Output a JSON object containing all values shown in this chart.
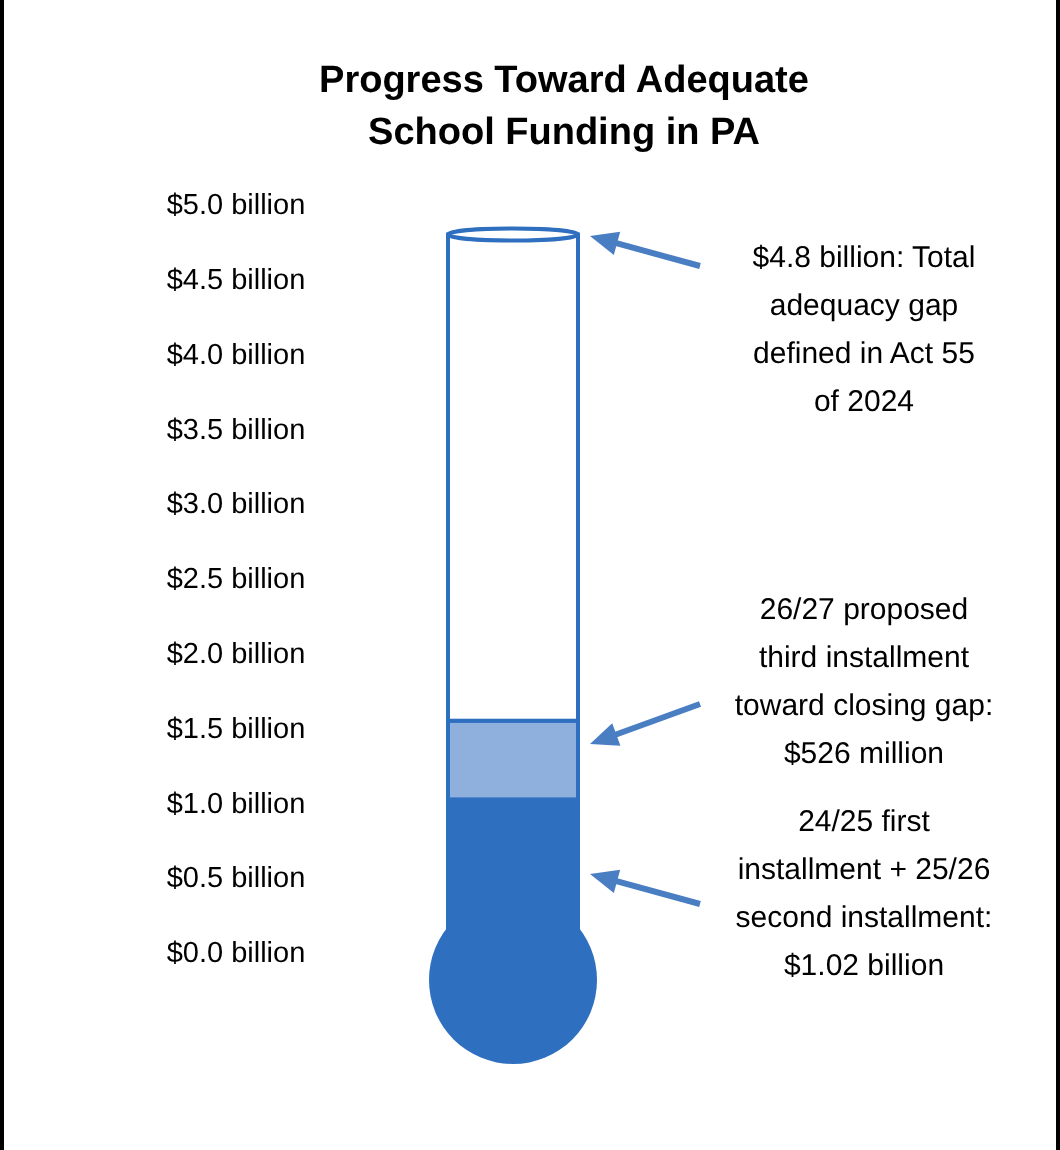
{
  "chart_data": {
    "type": "bar",
    "title": "Progress Toward Adequate School Funding in PA",
    "categories": [
      null
    ],
    "stacked": true,
    "series": [
      {
        "color": "#2e6fc0",
        "values": [
          1.02
        ]
      },
      {
        "color": "#8fb0dc",
        "values": [
          0.526
        ]
      },
      {
        "color": "#ffffff",
        "values": [
          3.25
        ]
      }
    ],
    "ylim": [
      0,
      5
    ],
    "yticks": [
      {
        "value": 0,
        "label": "$0.0 billion"
      },
      {
        "value": 0.5,
        "label": "$0.5 billion"
      },
      {
        "value": 1,
        "label": "$1.0 billion"
      },
      {
        "value": 1.5,
        "label": "$1.5 billion"
      },
      {
        "value": 2,
        "label": "$2.0 billion"
      },
      {
        "value": 2.5,
        "label": "$2.5 billion"
      },
      {
        "value": 3,
        "label": "$3.0 billion"
      },
      {
        "value": 3.5,
        "label": "$3.5 billion"
      },
      {
        "value": 4,
        "label": "$4.0 billion"
      },
      {
        "value": 4.5,
        "label": "$4.5 billion"
      },
      {
        "value": 5,
        "label": "$5.0 billion"
      }
    ],
    "annotations": [
      "$4.8 billion: Total adequacy gap defined in Act 55 of 2024",
      "26/27 proposed third installment toward closing gap: $526 million",
      "24/25 first installment + 25/26 second installment: $1.02 billion"
    ]
  }
}
